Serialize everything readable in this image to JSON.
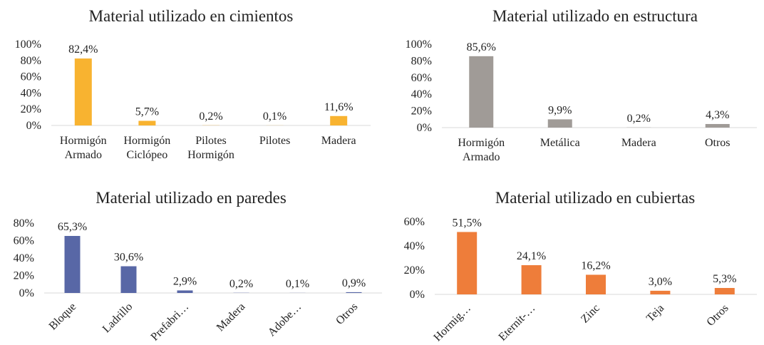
{
  "chart_data": [
    {
      "type": "bar",
      "title": "Material utilizado en cimientos",
      "categories": [
        "Hormigón Armado",
        "Hormigón Ciclópeo",
        "Pilotes Hormigón",
        "Pilotes",
        "Madera"
      ],
      "values": [
        82.4,
        5.7,
        0.2,
        0.1,
        11.6
      ],
      "value_labels": [
        "82,4%",
        "5,7%",
        "0,2%",
        "0,1%",
        "11,6%"
      ],
      "color": "#f8b330",
      "ylim": [
        0,
        100
      ],
      "yticks": [
        {
          "value": 0,
          "label": "0%"
        },
        {
          "value": 20,
          "label": "20%"
        },
        {
          "value": 40,
          "label": "40%"
        },
        {
          "value": 60,
          "label": "60%"
        },
        {
          "value": 80,
          "label": "80%"
        },
        {
          "value": 100,
          "label": "100%"
        }
      ]
    },
    {
      "type": "bar",
      "title": "Material utilizado en estructura",
      "categories": [
        "Hormigón Armado",
        "Metálica",
        "Madera",
        "Otros"
      ],
      "values": [
        85.6,
        9.9,
        0.2,
        4.3
      ],
      "value_labels": [
        "85,6%",
        "9,9%",
        "0,2%",
        "4,3%"
      ],
      "color": "#a09b97",
      "ylim": [
        0,
        100
      ],
      "yticks": [
        {
          "value": 0,
          "label": "0%"
        },
        {
          "value": 20,
          "label": "20%"
        },
        {
          "value": 40,
          "label": "40%"
        },
        {
          "value": 60,
          "label": "60%"
        },
        {
          "value": 80,
          "label": "80%"
        },
        {
          "value": 100,
          "label": "100%"
        }
      ]
    },
    {
      "type": "bar",
      "title": "Material utilizado en paredes",
      "categories": [
        "Bloque",
        "Ladrillo",
        "Prefabri…",
        "Madera",
        "Adobe…",
        "Otros"
      ],
      "values": [
        65.3,
        30.6,
        2.9,
        0.2,
        0.1,
        0.9
      ],
      "value_labels": [
        "65,3%",
        "30,6%",
        "2,9%",
        "0,2%",
        "0,1%",
        "0,9%"
      ],
      "color": "#5867a6",
      "ylim": [
        0,
        80
      ],
      "yticks": [
        {
          "value": 0,
          "label": "0%"
        },
        {
          "value": 20,
          "label": "20%"
        },
        {
          "value": 40,
          "label": "40%"
        },
        {
          "value": 60,
          "label": "60%"
        },
        {
          "value": 80,
          "label": "80%"
        }
      ]
    },
    {
      "type": "bar",
      "title": "Material utilizado en cubiertas",
      "categories": [
        "Hormig…",
        "Eternit-…",
        "Zinc",
        "Teja",
        "Otros"
      ],
      "values": [
        51.5,
        24.1,
        16.2,
        3.0,
        5.3
      ],
      "value_labels": [
        "51,5%",
        "24,1%",
        "16,2%",
        "3,0%",
        "5,3%"
      ],
      "color": "#ee7d3a",
      "ylim": [
        0,
        60
      ],
      "yticks": [
        {
          "value": 0,
          "label": "0%"
        },
        {
          "value": 20,
          "label": "20%"
        },
        {
          "value": 40,
          "label": "40%"
        },
        {
          "value": 60,
          "label": "60%"
        }
      ]
    }
  ]
}
